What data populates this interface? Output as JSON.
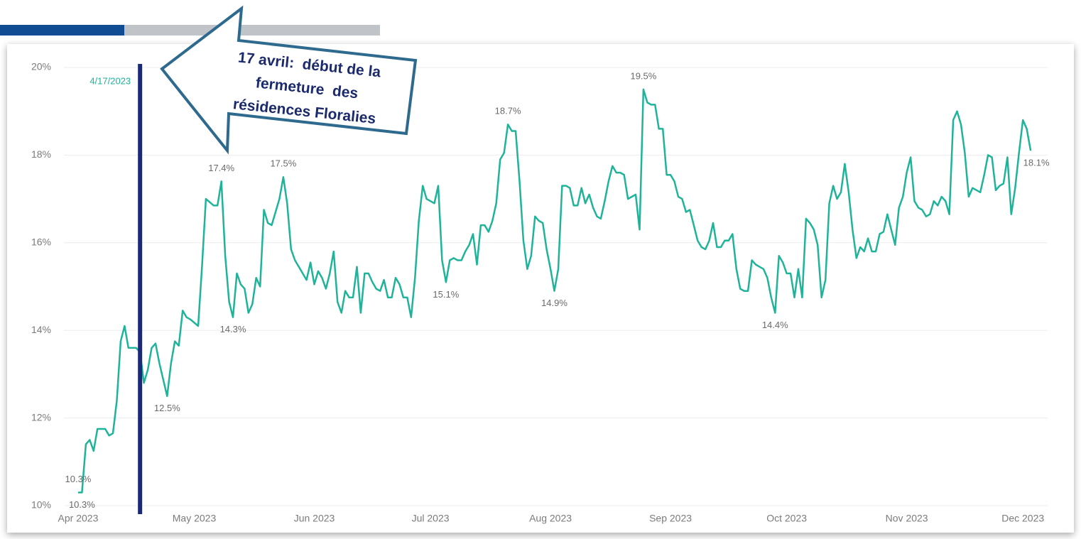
{
  "chart_data": {
    "type": "line",
    "color": "#1fb39a",
    "xlim": [
      -1,
      248
    ],
    "ylim": [
      10,
      20
    ],
    "yticks": [
      {
        "value": 10,
        "label": "10%"
      },
      {
        "value": 12,
        "label": "12%"
      },
      {
        "value": 14,
        "label": "14%"
      },
      {
        "value": 16,
        "label": "16%"
      },
      {
        "value": 18,
        "label": "18%"
      },
      {
        "value": 20,
        "label": "20%"
      }
    ],
    "xticks": [
      {
        "value": 0,
        "label": "Apr 2023"
      },
      {
        "value": 30,
        "label": "May 2023"
      },
      {
        "value": 61,
        "label": "Jun 2023"
      },
      {
        "value": 91,
        "label": "Jul 2023"
      },
      {
        "value": 122,
        "label": "Aug 2023"
      },
      {
        "value": 153,
        "label": "Sep 2023"
      },
      {
        "value": 183,
        "label": "Oct 2023"
      },
      {
        "value": 214,
        "label": "Nov 2023"
      },
      {
        "value": 244,
        "label": "Dec 2023"
      }
    ],
    "grid": true,
    "marker": {
      "x": 16,
      "label": "4/17/2023"
    },
    "callout": [
      "17 avril:  début de la",
      "fermeture  des",
      "résidences Floralies"
    ],
    "x": [
      0,
      1,
      2,
      3,
      4,
      5,
      7,
      8,
      9,
      10,
      11,
      12,
      13,
      15,
      16,
      17,
      18,
      19,
      20,
      21,
      23,
      24,
      25,
      26,
      27,
      28,
      29,
      31,
      32,
      33,
      35,
      36,
      37,
      38,
      39,
      40,
      41,
      42,
      43,
      44,
      45,
      46,
      47,
      48,
      49,
      50,
      52,
      53,
      54,
      55,
      56,
      58,
      59,
      60,
      61,
      62,
      63,
      64,
      65,
      66,
      67,
      68,
      69,
      70,
      71,
      72,
      73,
      74,
      75,
      76,
      77,
      78,
      79,
      80,
      81,
      82,
      83,
      84,
      85,
      86,
      87,
      88,
      89,
      90,
      91,
      92,
      93,
      94,
      95,
      96,
      97,
      98,
      99,
      100,
      101,
      102,
      103,
      104,
      105,
      106,
      107,
      108,
      109,
      110,
      111,
      112,
      113,
      114,
      115,
      116,
      117,
      118,
      119,
      120,
      121,
      122,
      123,
      124,
      125,
      126,
      127,
      128,
      129,
      130,
      131,
      132,
      133,
      134,
      135,
      136,
      137,
      138,
      139,
      140,
      141,
      142,
      143,
      144,
      145,
      146,
      147,
      148,
      149,
      150,
      151,
      152,
      153,
      154,
      155,
      156,
      157,
      158,
      159,
      160,
      161,
      162,
      163,
      164,
      165,
      166,
      167,
      168,
      169,
      170,
      171,
      172,
      173,
      174,
      175,
      176,
      177,
      178,
      179,
      180,
      181,
      182,
      183,
      184,
      185,
      186,
      187,
      188,
      189,
      190,
      191,
      192,
      193,
      194,
      195,
      196,
      197,
      198,
      199,
      200,
      201,
      202,
      203,
      204,
      205,
      206,
      207,
      208,
      209,
      210,
      211,
      212,
      213,
      214,
      215,
      216,
      217,
      218,
      219,
      220,
      221,
      222,
      223,
      224,
      225,
      226,
      227,
      228,
      229,
      230,
      231,
      232,
      233,
      234,
      235,
      236,
      237,
      238,
      239,
      240,
      241,
      242,
      243,
      244,
      245,
      246
    ],
    "values": [
      10.3,
      10.3,
      11.4,
      11.5,
      11.25,
      11.75,
      11.75,
      11.6,
      11.65,
      12.4,
      13.75,
      14.1,
      13.6,
      13.6,
      13.5,
      12.8,
      13.1,
      13.6,
      13.7,
      13.25,
      12.5,
      13.25,
      13.75,
      13.65,
      14.45,
      14.3,
      14.25,
      14.1,
      15.45,
      17.0,
      16.85,
      16.85,
      17.4,
      15.7,
      14.65,
      14.3,
      15.3,
      15.05,
      14.95,
      14.4,
      14.6,
      15.2,
      15.0,
      16.75,
      16.45,
      16.4,
      17.0,
      17.5,
      16.9,
      15.85,
      15.6,
      15.3,
      15.15,
      15.55,
      15.05,
      15.35,
      15.2,
      14.95,
      15.3,
      15.8,
      14.65,
      14.4,
      14.9,
      14.75,
      14.75,
      15.45,
      14.4,
      15.3,
      15.3,
      15.1,
      14.95,
      14.9,
      15.15,
      14.75,
      14.75,
      15.2,
      15.05,
      14.75,
      14.75,
      14.3,
      15.2,
      16.5,
      17.3,
      17.0,
      16.95,
      16.9,
      17.3,
      15.6,
      15.1,
      15.6,
      15.65,
      15.6,
      15.6,
      15.8,
      15.95,
      16.2,
      15.5,
      16.4,
      16.4,
      16.25,
      16.5,
      16.9,
      17.9,
      18.05,
      18.7,
      18.55,
      18.55,
      17.4,
      16.05,
      15.4,
      15.7,
      16.6,
      16.5,
      16.45,
      15.85,
      15.4,
      14.9,
      15.4,
      17.3,
      17.3,
      17.25,
      16.85,
      16.85,
      17.25,
      16.9,
      17.1,
      16.8,
      16.6,
      16.55,
      16.95,
      17.4,
      17.75,
      17.6,
      17.6,
      17.55,
      17.0,
      17.05,
      17.1,
      16.3,
      19.5,
      19.2,
      19.15,
      19.15,
      18.6,
      18.6,
      17.55,
      17.55,
      17.4,
      17.05,
      17.0,
      16.7,
      16.75,
      16.4,
      16.05,
      15.9,
      15.85,
      16.05,
      16.45,
      15.9,
      15.9,
      16.05,
      16.05,
      16.2,
      15.4,
      14.95,
      14.9,
      14.9,
      15.6,
      15.5,
      15.45,
      15.4,
      15.2,
      14.75,
      14.4,
      15.7,
      15.55,
      15.3,
      15.3,
      14.75,
      15.4,
      14.75,
      16.55,
      16.45,
      16.3,
      15.95,
      14.75,
      15.15,
      16.9,
      17.3,
      17.0,
      17.15,
      17.8,
      17.15,
      16.3,
      15.65,
      15.9,
      15.8,
      16.1,
      15.8,
      15.8,
      16.2,
      16.25,
      16.65,
      16.3,
      15.95,
      16.8,
      17.05,
      17.6,
      17.95,
      16.95,
      16.8,
      16.75,
      16.6,
      16.65,
      16.95,
      16.85,
      17.05,
      16.95,
      16.65,
      18.8,
      19.0,
      18.7,
      18.05,
      17.05,
      17.25,
      17.2,
      17.15,
      17.55,
      18.0,
      17.95,
      17.2,
      17.3,
      17.35,
      17.95,
      16.65,
      17.25,
      18.05,
      18.8,
      18.6,
      18.1
    ],
    "value_labels": [
      "10.3%",
      "10.3%",
      null,
      null,
      null,
      null,
      null,
      null,
      null,
      null,
      null,
      null,
      null,
      null,
      null,
      null,
      null,
      null,
      null,
      null,
      "12.5%",
      null,
      null,
      null,
      null,
      null,
      null,
      null,
      null,
      null,
      null,
      null,
      "17.4%",
      null,
      null,
      "14.3%",
      null,
      null,
      null,
      null,
      null,
      null,
      null,
      null,
      null,
      null,
      null,
      "17.5%",
      null,
      null,
      null,
      null,
      null,
      null,
      null,
      null,
      null,
      null,
      null,
      null,
      null,
      null,
      null,
      null,
      null,
      null,
      null,
      null,
      null,
      null,
      null,
      null,
      null,
      null,
      null,
      null,
      null,
      null,
      null,
      null,
      null,
      null,
      null,
      null,
      null,
      null,
      null,
      null,
      "15.1%",
      null,
      null,
      null,
      null,
      null,
      null,
      null,
      null,
      null,
      null,
      null,
      null,
      null,
      null,
      null,
      "18.7%",
      null,
      null,
      null,
      null,
      null,
      null,
      null,
      null,
      null,
      null,
      null,
      "14.9%",
      null,
      null,
      null,
      null,
      null,
      null,
      null,
      null,
      null,
      null,
      null,
      null,
      null,
      null,
      null,
      null,
      null,
      null,
      null,
      null,
      null,
      null,
      "19.5%",
      null,
      null,
      null,
      null,
      null,
      null,
      null,
      null,
      null,
      null,
      null,
      null,
      null,
      null,
      null,
      null,
      null,
      null,
      null,
      null,
      null,
      null,
      null,
      null,
      null,
      null,
      null,
      null,
      null,
      null,
      null,
      null,
      null,
      "14.4%",
      null,
      null,
      null,
      null,
      null,
      null,
      null,
      null,
      null,
      null,
      null,
      null,
      null,
      null,
      null,
      null,
      null,
      null,
      null,
      null,
      null,
      null,
      null,
      null,
      null,
      null,
      null,
      null,
      null,
      null,
      null,
      null,
      null,
      null,
      null,
      null,
      null,
      null,
      null,
      null,
      null,
      null,
      null,
      null,
      null,
      null,
      null,
      null,
      null,
      null,
      null,
      null,
      null,
      null,
      null,
      null,
      null,
      null,
      null,
      null,
      null,
      null,
      null,
      null,
      null,
      "18.1%"
    ]
  }
}
